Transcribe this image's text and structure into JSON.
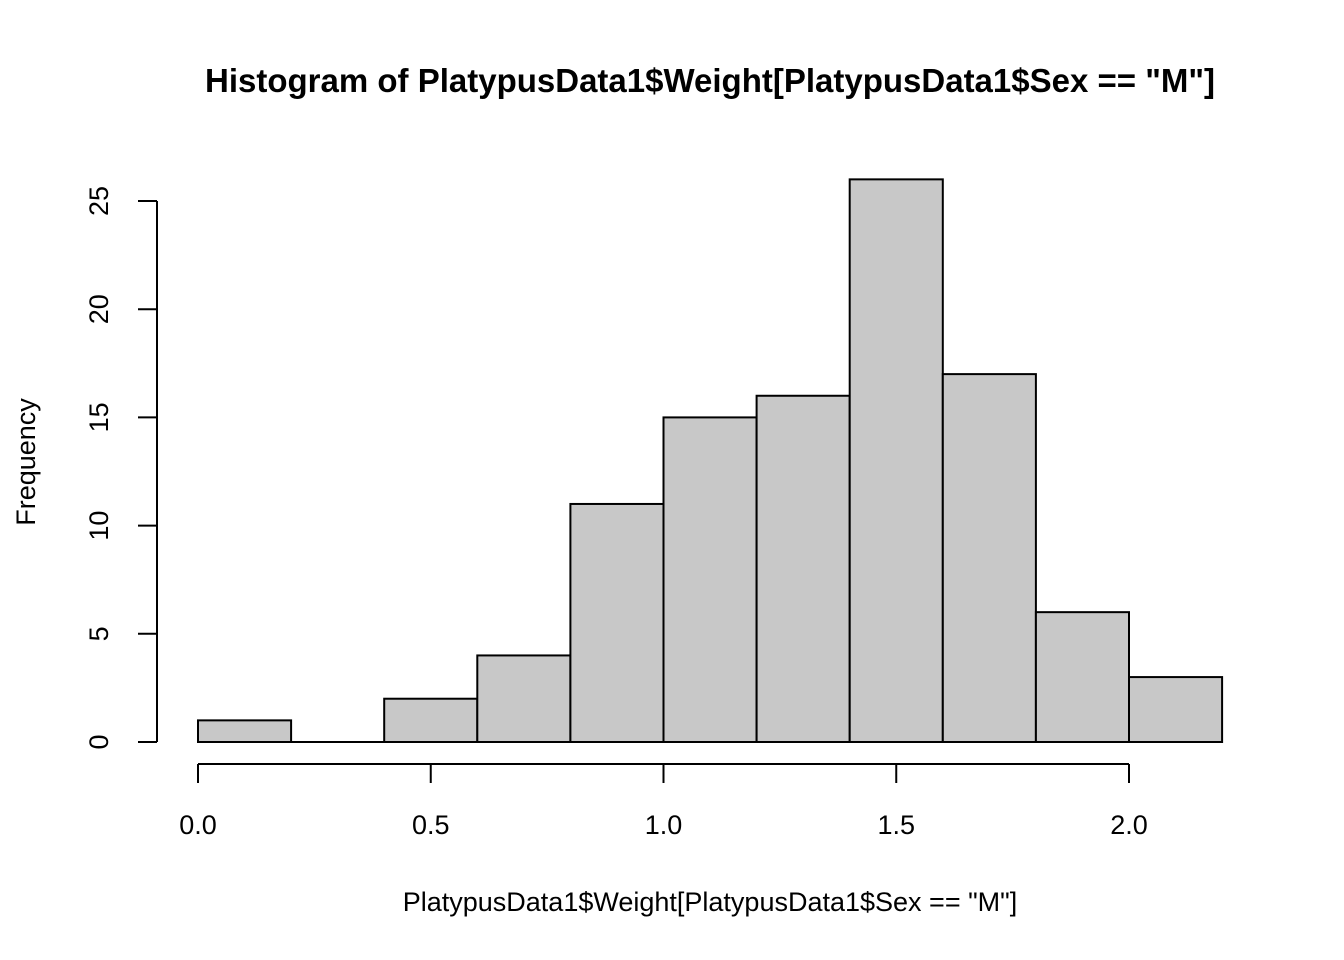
{
  "chart_data": {
    "type": "bar",
    "subtype": "histogram",
    "title": "Histogram of PlatypusData1$Weight[PlatypusData1$Sex == \"M\"]",
    "xlabel": "PlatypusData1$Weight[PlatypusData1$Sex == \"M\"]",
    "ylabel": "Frequency",
    "bin_edges": [
      0.0,
      0.2,
      0.4,
      0.6,
      0.8,
      1.0,
      1.2,
      1.4,
      1.6,
      1.8,
      2.0,
      2.2
    ],
    "categories": [
      "0.0-0.2",
      "0.2-0.4",
      "0.4-0.6",
      "0.6-0.8",
      "0.8-1.0",
      "1.0-1.2",
      "1.2-1.4",
      "1.4-1.6",
      "1.6-1.8",
      "1.8-2.0",
      "2.0-2.2"
    ],
    "values": [
      1,
      0,
      2,
      4,
      11,
      15,
      16,
      26,
      17,
      6,
      3
    ],
    "x_ticks": [
      0.0,
      0.5,
      1.0,
      1.5,
      2.0
    ],
    "x_tick_labels": [
      "0.0",
      "0.5",
      "1.0",
      "1.5",
      "2.0"
    ],
    "y_ticks": [
      0,
      5,
      10,
      15,
      20,
      25
    ],
    "y_tick_labels": [
      "0",
      "5",
      "10",
      "15",
      "20",
      "25"
    ],
    "xlim": [
      0.0,
      2.2
    ],
    "ylim": [
      0,
      26
    ],
    "grid": false,
    "legend": null,
    "bar_fill": "#c8c8c8",
    "bar_stroke": "#000000"
  }
}
